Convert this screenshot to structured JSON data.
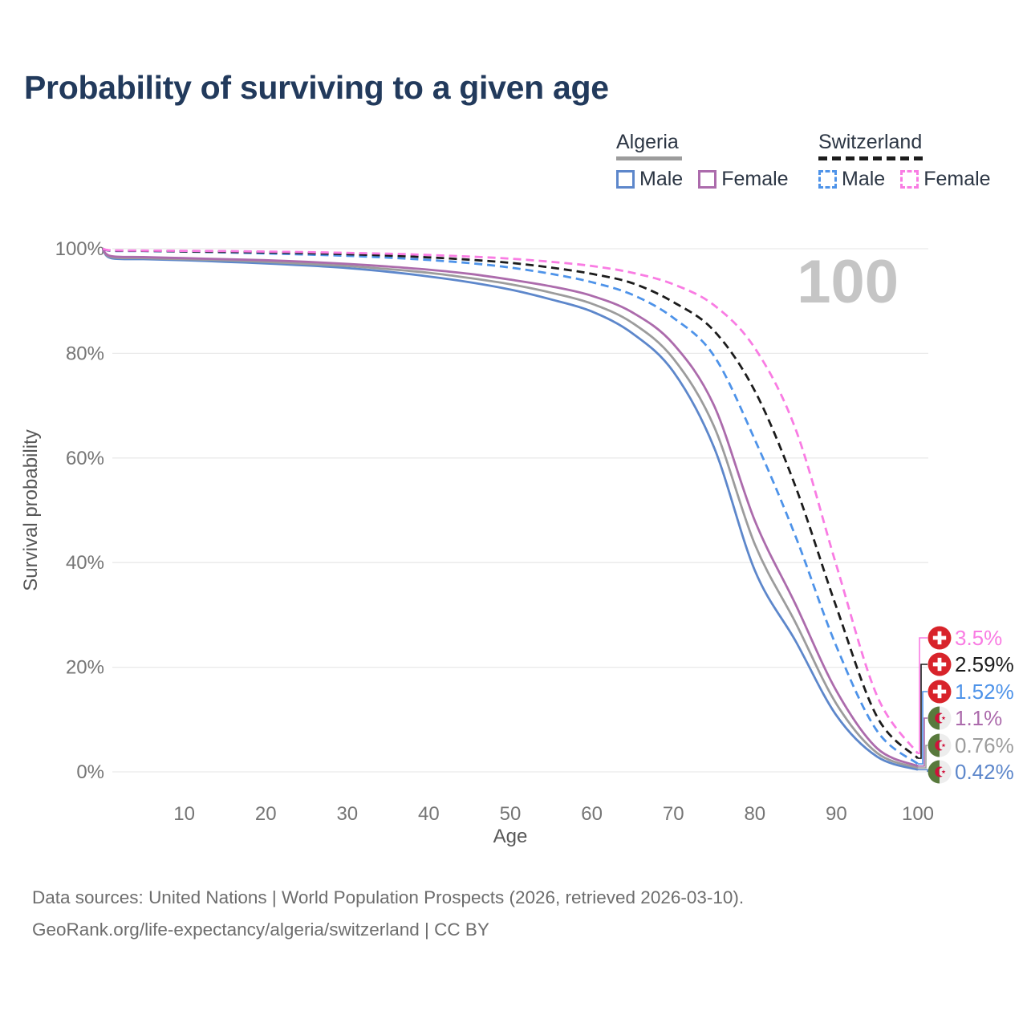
{
  "title": "Probability of surviving to a given age",
  "watermark": "100",
  "legend": {
    "groups": [
      {
        "name": "Algeria",
        "line_color": "#9c9c9c",
        "line_style": "solid",
        "items": [
          {
            "label": "Male",
            "color": "#5d87cb",
            "dashed": false
          },
          {
            "label": "Female",
            "color": "#ac6bac",
            "dashed": false
          }
        ]
      },
      {
        "name": "Switzerland",
        "line_color": "#1c1c1c",
        "line_style": "dashed",
        "items": [
          {
            "label": "Male",
            "color": "#4e93e9",
            "dashed": true
          },
          {
            "label": "Female",
            "color": "#f97ce3",
            "dashed": true
          }
        ]
      }
    ]
  },
  "chart_data": {
    "type": "line",
    "title": "Probability of surviving to a given age",
    "xlabel": "Age",
    "ylabel": "Survival probability",
    "xlim": [
      0,
      100
    ],
    "ylim": [
      0,
      100
    ],
    "grid": "horizontal-only",
    "legend_position": "top-right",
    "x_ticks": [
      10,
      20,
      30,
      40,
      50,
      60,
      70,
      80,
      90,
      100
    ],
    "x_tick_labels": [
      "10",
      "20",
      "30",
      "40",
      "50",
      "60",
      "70",
      "80",
      "90",
      "100"
    ],
    "y_ticks": [
      0,
      20,
      40,
      60,
      80,
      100
    ],
    "y_tick_labels": [
      "0%",
      "20%",
      "40%",
      "60%",
      "80%",
      "100%"
    ],
    "x": [
      0,
      1,
      5,
      10,
      15,
      20,
      25,
      30,
      35,
      40,
      45,
      50,
      55,
      60,
      65,
      70,
      75,
      80,
      85,
      90,
      95,
      100
    ],
    "series": [
      {
        "id": "switzerland-female",
        "name": "Switzerland Female",
        "color": "#f97ce3",
        "dashed": true,
        "flag": "switzerland",
        "end_label": "3.5%",
        "values": [
          100,
          99.7,
          99.65,
          99.6,
          99.55,
          99.45,
          99.35,
          99.2,
          99.05,
          98.8,
          98.5,
          98.1,
          97.5,
          96.7,
          95.4,
          93.2,
          89.2,
          81.0,
          65.5,
          39.5,
          14.5,
          3.5
        ]
      },
      {
        "id": "switzerland-total",
        "name": "Switzerland Total",
        "color": "#1c1c1c",
        "dashed": true,
        "flag": "switzerland",
        "end_label": "2.59%",
        "values": [
          100,
          99.65,
          99.6,
          99.5,
          99.4,
          99.3,
          99.15,
          98.95,
          98.7,
          98.35,
          97.9,
          97.3,
          96.4,
          95.2,
          93.4,
          89.8,
          84.3,
          72.8,
          54.5,
          31.5,
          10.5,
          2.59
        ]
      },
      {
        "id": "switzerland-male",
        "name": "Switzerland Male",
        "color": "#4e93e9",
        "dashed": true,
        "flag": "switzerland",
        "end_label": "1.52%",
        "values": [
          100,
          99.6,
          99.55,
          99.45,
          99.3,
          99.1,
          98.9,
          98.65,
          98.3,
          97.85,
          97.25,
          96.4,
          95.2,
          93.6,
          91.2,
          86.8,
          79.5,
          63.5,
          45.0,
          24.0,
          7.8,
          1.52
        ]
      },
      {
        "id": "algeria-female",
        "name": "Algeria Female",
        "color": "#ac6bac",
        "dashed": false,
        "flag": "algeria",
        "end_label": "1.1%",
        "values": [
          100,
          98.6,
          98.4,
          98.2,
          98.0,
          97.8,
          97.5,
          97.1,
          96.6,
          96.0,
          95.2,
          94.1,
          92.8,
          91.0,
          87.8,
          81.8,
          70.0,
          48.0,
          32.0,
          15.5,
          4.5,
          1.1
        ]
      },
      {
        "id": "algeria-total",
        "name": "Algeria Total",
        "color": "#9c9c9c",
        "dashed": false,
        "flag": "algeria",
        "end_label": "0.76%",
        "values": [
          100,
          98.4,
          98.2,
          98.0,
          97.8,
          97.5,
          97.1,
          96.7,
          96.1,
          95.4,
          94.4,
          93.2,
          91.6,
          89.5,
          85.8,
          79.0,
          66.0,
          43.5,
          28.5,
          13.0,
          3.6,
          0.76
        ]
      },
      {
        "id": "algeria-male",
        "name": "Algeria Male",
        "color": "#5d87cb",
        "dashed": false,
        "flag": "algeria",
        "end_label": "0.42%",
        "values": [
          100,
          98.2,
          98.0,
          97.8,
          97.5,
          97.2,
          96.8,
          96.3,
          95.6,
          94.7,
          93.6,
          92.2,
          90.3,
          88.0,
          83.8,
          76.5,
          62.0,
          38.5,
          25.0,
          10.8,
          2.9,
          0.42
        ]
      }
    ],
    "flag_colors": {
      "switzerland_red": "#d8232a",
      "switzerland_cross": "#ffffff",
      "algeria_green": "#58793c",
      "algeria_white": "#ededed",
      "algeria_red": "#d0103a"
    }
  },
  "footer": {
    "line1": "Data sources: United Nations | World Population Prospects (2026, retrieved 2026-03-10).",
    "line2": "GeoRank.org/life-expectancy/algeria/switzerland | CC BY"
  }
}
